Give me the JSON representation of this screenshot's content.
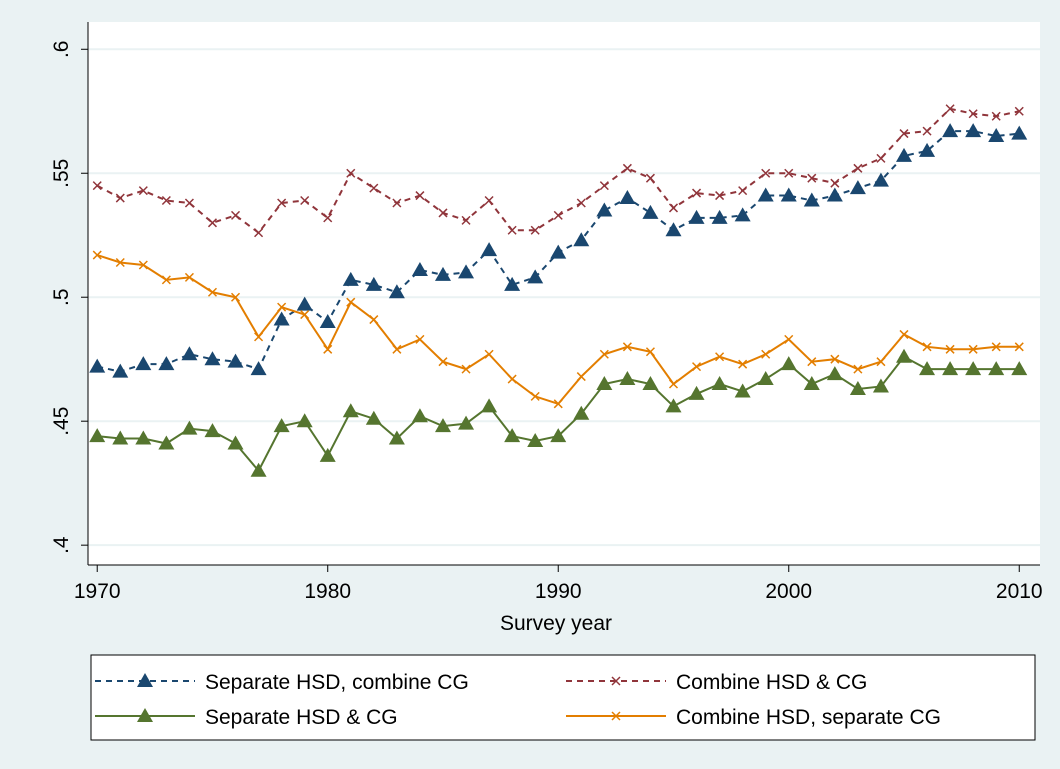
{
  "chart_data": {
    "type": "line",
    "x_label": "Survey year",
    "x": [
      1970,
      1971,
      1972,
      1973,
      1974,
      1975,
      1976,
      1977,
      1978,
      1979,
      1980,
      1981,
      1982,
      1983,
      1984,
      1985,
      1986,
      1987,
      1988,
      1989,
      1990,
      1991,
      1992,
      1993,
      1994,
      1995,
      1996,
      1997,
      1998,
      1999,
      2000,
      2001,
      2002,
      2003,
      2004,
      2005,
      2006,
      2007,
      2008,
      2009,
      2010
    ],
    "series": [
      {
        "name": "Separate HSD, combine CG",
        "color": "#1a476f",
        "marker": "triangle",
        "dash": true,
        "values": [
          0.472,
          0.47,
          0.473,
          0.473,
          0.477,
          0.475,
          0.474,
          0.471,
          0.491,
          0.497,
          0.49,
          0.507,
          0.505,
          0.502,
          0.511,
          0.509,
          0.51,
          0.519,
          0.505,
          0.508,
          0.518,
          0.523,
          0.535,
          0.54,
          0.534,
          0.527,
          0.532,
          0.532,
          0.533,
          0.541,
          0.541,
          0.539,
          0.541,
          0.544,
          0.547,
          0.557,
          0.559,
          0.567,
          0.567,
          0.565,
          0.566
        ]
      },
      {
        "name": "Combine HSD & CG",
        "color": "#90353b",
        "marker": "x",
        "dash": true,
        "values": [
          0.545,
          0.54,
          0.543,
          0.539,
          0.538,
          0.53,
          0.533,
          0.526,
          0.538,
          0.539,
          0.532,
          0.55,
          0.544,
          0.538,
          0.541,
          0.534,
          0.531,
          0.539,
          0.527,
          0.527,
          0.533,
          0.538,
          0.545,
          0.552,
          0.548,
          0.536,
          0.542,
          0.541,
          0.543,
          0.55,
          0.55,
          0.548,
          0.546,
          0.552,
          0.556,
          0.566,
          0.567,
          0.576,
          0.574,
          0.573,
          0.575
        ]
      },
      {
        "name": "Separate HSD & CG",
        "color": "#55752f",
        "marker": "triangle",
        "dash": false,
        "values": [
          0.444,
          0.443,
          0.443,
          0.441,
          0.447,
          0.446,
          0.441,
          0.43,
          0.448,
          0.45,
          0.436,
          0.454,
          0.451,
          0.443,
          0.452,
          0.448,
          0.449,
          0.456,
          0.444,
          0.442,
          0.444,
          0.453,
          0.465,
          0.467,
          0.465,
          0.456,
          0.461,
          0.465,
          0.462,
          0.467,
          0.473,
          0.465,
          0.469,
          0.463,
          0.464,
          0.476,
          0.471,
          0.471,
          0.471,
          0.471,
          0.471
        ]
      },
      {
        "name": "Combine HSD, separate CG",
        "color": "#e37e00",
        "marker": "x",
        "dash": false,
        "values": [
          0.517,
          0.514,
          0.513,
          0.507,
          0.508,
          0.502,
          0.5,
          0.484,
          0.496,
          0.493,
          0.479,
          0.498,
          0.491,
          0.479,
          0.483,
          0.474,
          0.471,
          0.477,
          0.467,
          0.46,
          0.457,
          0.468,
          0.477,
          0.48,
          0.478,
          0.465,
          0.472,
          0.476,
          0.473,
          0.477,
          0.483,
          0.474,
          0.475,
          0.471,
          0.474,
          0.485,
          0.48,
          0.479,
          0.479,
          0.48,
          0.48
        ]
      }
    ],
    "xlim": [
      1969.6,
      2010.9
    ],
    "xticks": [
      1970,
      1980,
      1990,
      2000,
      2010
    ],
    "ylim": [
      0.392,
      0.611
    ],
    "yticks": [
      {
        "value": 0.4,
        "label": ".4"
      },
      {
        "value": 0.45,
        "label": ".45"
      },
      {
        "value": 0.5,
        "label": ".5"
      },
      {
        "value": 0.55,
        "label": ".55"
      },
      {
        "value": 0.6,
        "label": ".6"
      }
    ],
    "grid": true,
    "legend": "bottom"
  }
}
